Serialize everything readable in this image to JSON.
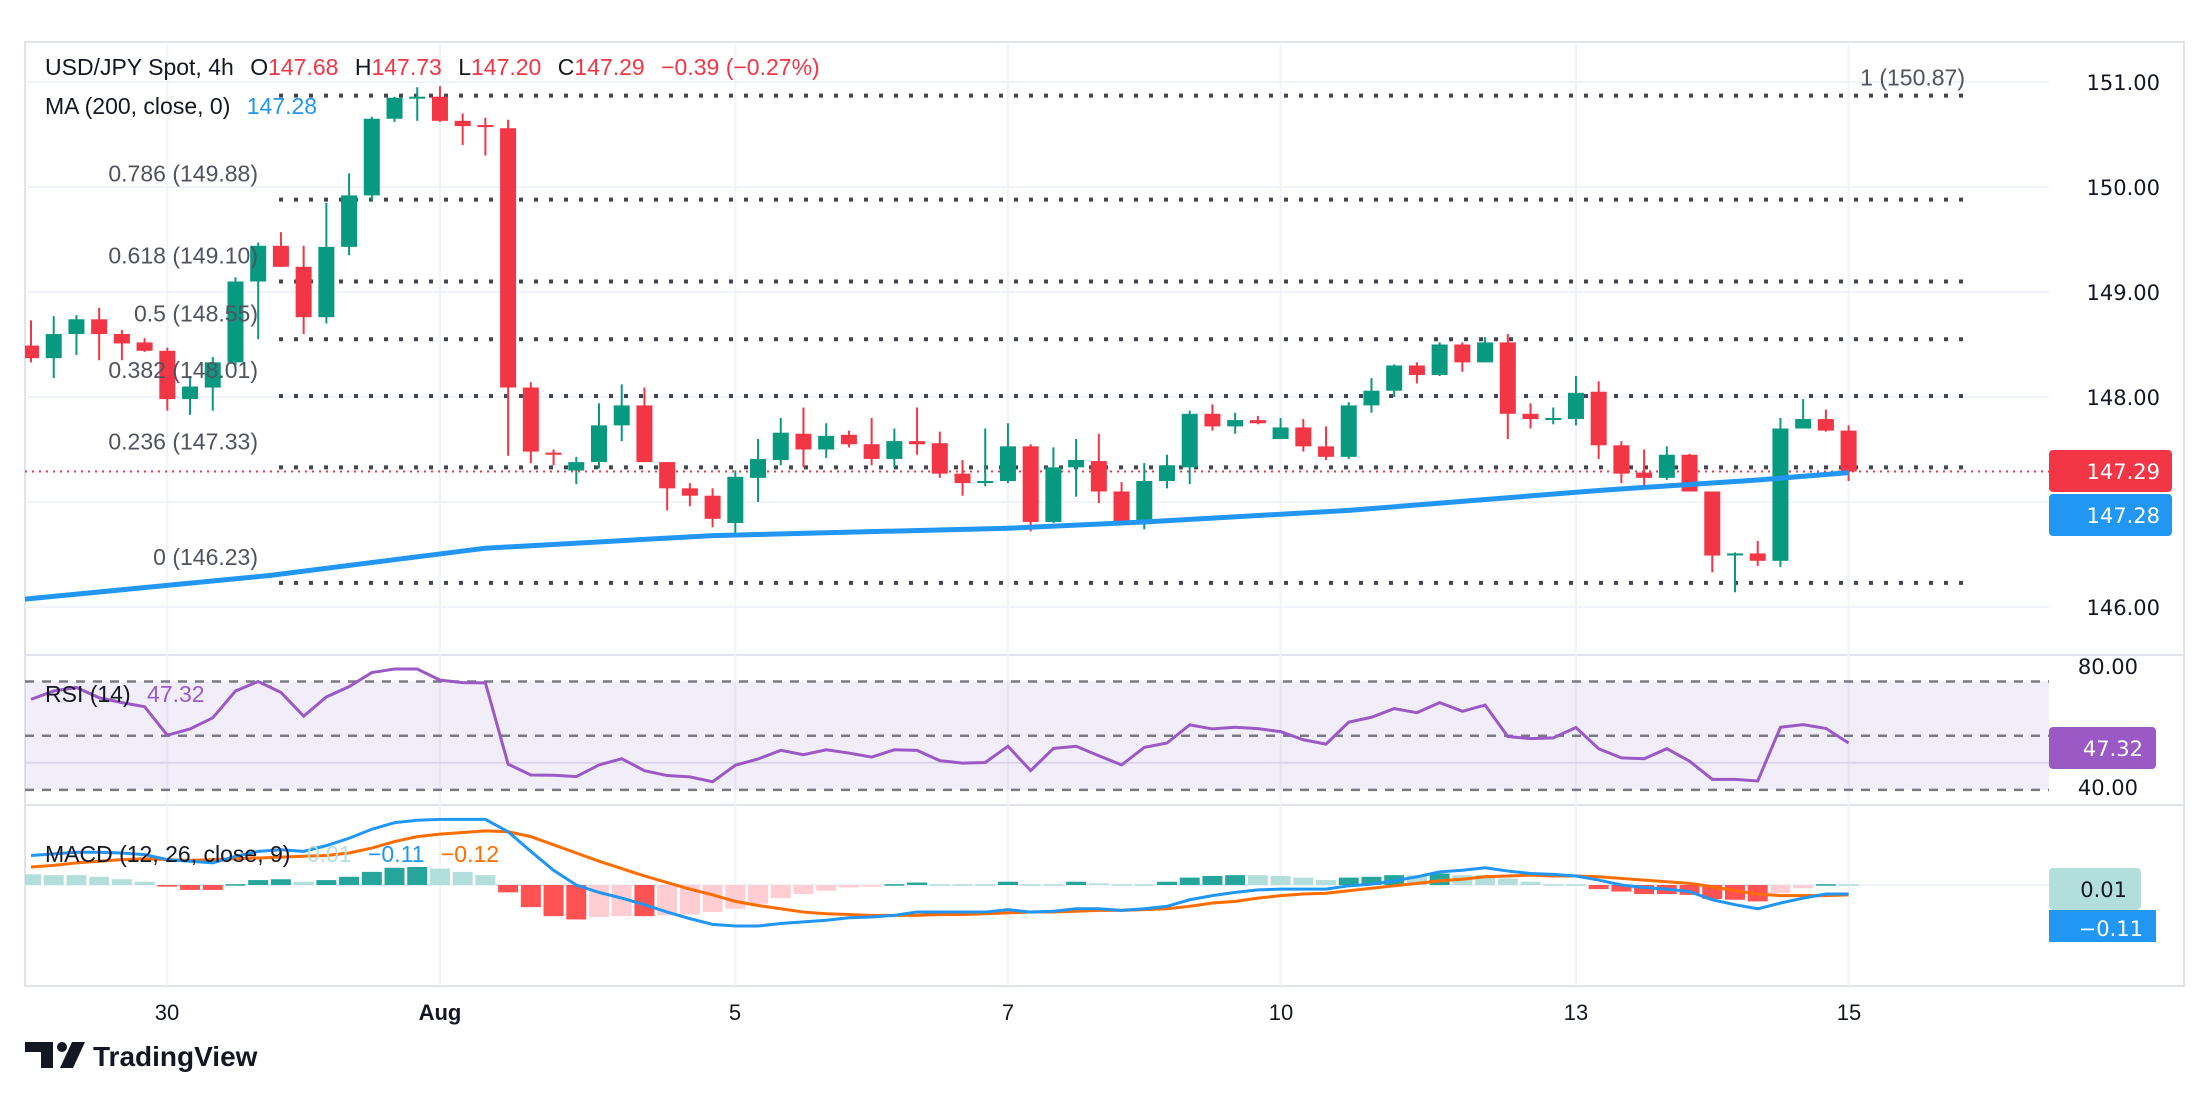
{
  "header": {
    "symbol": "USD/JPY Spot, 4h",
    "o_label": "O",
    "o": "147.68",
    "h_label": "H",
    "h": "147.73",
    "l_label": "L",
    "l": "147.20",
    "c_label": "C",
    "c": "147.29",
    "change": "−0.39 (−0.27%)"
  },
  "ma": {
    "label": "MA (200, close, 0)",
    "value": "147.28"
  },
  "rsi": {
    "label": "RSI (14)",
    "value": "47.32"
  },
  "macd": {
    "label": "MACD (12, 26, close, 9)",
    "hist": "0.01",
    "macd": "−0.11",
    "signal": "−0.12"
  },
  "price_axis": {
    "ticks": [
      "151.00",
      "150.00",
      "149.00",
      "148.00",
      "146.00"
    ]
  },
  "price_tags": {
    "last": "147.29",
    "ma": "147.28"
  },
  "rsi_axis": {
    "ticks": [
      "80.00",
      "40.00"
    ],
    "tag": "47.32"
  },
  "macd_tags": {
    "hist": "0.01",
    "macd": "−0.11"
  },
  "fib": [
    {
      "label": "1 (150.87)",
      "ratio": 1,
      "price": 150.87
    },
    {
      "label": "0.786 (149.88)",
      "ratio": 0.786,
      "price": 149.88
    },
    {
      "label": "0.618 (149.10)",
      "ratio": 0.618,
      "price": 149.1
    },
    {
      "label": "0.5 (148.55)",
      "ratio": 0.5,
      "price": 148.55
    },
    {
      "label": "0.382 (148.01)",
      "ratio": 0.382,
      "price": 148.01
    },
    {
      "label": "0.236 (147.33)",
      "ratio": 0.236,
      "price": 147.33
    },
    {
      "label": "0 (146.23)",
      "ratio": 0,
      "price": 146.23
    }
  ],
  "time_axis": [
    {
      "label": "30",
      "bar": 6
    },
    {
      "label": "Aug",
      "bar": 18
    },
    {
      "label": "5",
      "bar": 31
    },
    {
      "label": "7",
      "bar": 43
    },
    {
      "label": "10",
      "bar": 55
    },
    {
      "label": "13",
      "bar": 68
    },
    {
      "label": "15",
      "bar": 80
    }
  ],
  "brand": {
    "name": "TradingView"
  },
  "colors": {
    "up": "#089981",
    "down": "#f23645",
    "ma": "#2196f3",
    "rsi": "#9b59c6",
    "macd": "#2196f3",
    "signal": "#ff6d00",
    "hist_up_strong": "#26a69a",
    "hist_up_weak": "#b2dfdb",
    "hist_down_strong": "#ff5252",
    "hist_down_weak": "#ffcdd2",
    "fib_line": "#434651"
  },
  "chart_data": {
    "type": "candlestick",
    "interval": "4h",
    "ylim": [
      145.54,
      151.38
    ],
    "rsi_ylim": [
      30,
      80
    ],
    "rsi_bands": [
      70,
      50,
      30
    ],
    "grid": true,
    "candles_ohlc": [
      [
        148.49,
        148.73,
        148.33,
        148.37
      ],
      [
        148.37,
        148.77,
        148.18,
        148.6
      ],
      [
        148.6,
        148.78,
        148.4,
        148.74
      ],
      [
        148.74,
        148.85,
        148.35,
        148.6
      ],
      [
        148.6,
        148.64,
        148.35,
        148.51
      ],
      [
        148.52,
        148.56,
        148.43,
        148.44
      ],
      [
        148.44,
        148.47,
        147.87,
        147.98
      ],
      [
        147.98,
        148.2,
        147.83,
        148.1
      ],
      [
        148.09,
        148.38,
        147.87,
        148.33
      ],
      [
        148.33,
        149.14,
        148.3,
        149.1
      ],
      [
        149.1,
        149.47,
        148.55,
        149.44
      ],
      [
        149.44,
        149.57,
        149.24,
        149.24
      ],
      [
        149.24,
        149.44,
        148.6,
        148.76
      ],
      [
        148.76,
        149.85,
        148.7,
        149.43
      ],
      [
        149.43,
        150.13,
        149.35,
        149.92
      ],
      [
        149.92,
        150.67,
        149.87,
        150.65
      ],
      [
        150.65,
        150.86,
        150.62,
        150.85
      ],
      [
        150.85,
        150.95,
        150.63,
        150.86
      ],
      [
        150.86,
        150.96,
        150.62,
        150.63
      ],
      [
        150.63,
        150.7,
        150.4,
        150.58
      ],
      [
        150.59,
        150.66,
        150.3,
        150.58
      ],
      [
        150.56,
        150.64,
        147.44,
        148.09
      ],
      [
        148.09,
        148.14,
        147.37,
        147.48
      ],
      [
        147.47,
        147.5,
        147.35,
        147.45
      ],
      [
        147.3,
        147.43,
        147.17,
        147.38
      ],
      [
        147.38,
        147.94,
        147.32,
        147.73
      ],
      [
        147.73,
        148.12,
        147.58,
        147.92
      ],
      [
        147.92,
        148.09,
        147.38,
        147.38
      ],
      [
        147.38,
        147.38,
        146.92,
        147.13
      ],
      [
        147.13,
        147.18,
        146.96,
        147.06
      ],
      [
        147.06,
        147.13,
        146.76,
        146.84
      ],
      [
        146.8,
        147.3,
        146.7,
        147.24
      ],
      [
        147.23,
        147.6,
        147.0,
        147.41
      ],
      [
        147.4,
        147.8,
        147.35,
        147.66
      ],
      [
        147.65,
        147.9,
        147.33,
        147.5
      ],
      [
        147.5,
        147.75,
        147.42,
        147.63
      ],
      [
        147.64,
        147.68,
        147.52,
        147.55
      ],
      [
        147.55,
        147.8,
        147.35,
        147.41
      ],
      [
        147.41,
        147.7,
        147.33,
        147.58
      ],
      [
        147.58,
        147.9,
        147.45,
        147.55
      ],
      [
        147.56,
        147.67,
        147.23,
        147.27
      ],
      [
        147.27,
        147.4,
        147.06,
        147.18
      ],
      [
        147.19,
        147.7,
        147.15,
        147.2
      ],
      [
        147.2,
        147.75,
        147.18,
        147.53
      ],
      [
        147.53,
        147.55,
        146.72,
        146.81
      ],
      [
        146.81,
        147.52,
        146.8,
        147.33
      ],
      [
        147.33,
        147.6,
        147.05,
        147.4
      ],
      [
        147.39,
        147.65,
        146.99,
        147.1
      ],
      [
        147.1,
        147.19,
        146.78,
        146.81
      ],
      [
        146.8,
        147.37,
        146.74,
        147.2
      ],
      [
        147.2,
        147.45,
        147.13,
        147.35
      ],
      [
        147.33,
        147.87,
        147.17,
        147.84
      ],
      [
        147.84,
        147.93,
        147.68,
        147.72
      ],
      [
        147.72,
        147.85,
        147.65,
        147.78
      ],
      [
        147.78,
        147.82,
        147.74,
        147.75
      ],
      [
        147.6,
        147.8,
        147.6,
        147.71
      ],
      [
        147.71,
        147.79,
        147.48,
        147.53
      ],
      [
        147.53,
        147.72,
        147.4,
        147.43
      ],
      [
        147.43,
        147.95,
        147.41,
        147.92
      ],
      [
        147.92,
        148.18,
        147.85,
        148.06
      ],
      [
        148.06,
        148.31,
        148.0,
        148.3
      ],
      [
        148.3,
        148.33,
        148.13,
        148.21
      ],
      [
        148.21,
        148.52,
        148.2,
        148.5
      ],
      [
        148.5,
        148.52,
        148.24,
        148.33
      ],
      [
        148.33,
        148.57,
        148.33,
        148.52
      ],
      [
        148.52,
        148.6,
        147.6,
        147.84
      ],
      [
        147.84,
        147.94,
        147.7,
        147.79
      ],
      [
        147.79,
        147.9,
        147.74,
        147.8
      ],
      [
        147.79,
        148.2,
        147.73,
        148.04
      ],
      [
        148.05,
        148.15,
        147.41,
        147.54
      ],
      [
        147.54,
        147.58,
        147.18,
        147.27
      ],
      [
        147.28,
        147.5,
        147.13,
        147.23
      ],
      [
        147.23,
        147.53,
        147.21,
        147.45
      ],
      [
        147.45,
        147.46,
        147.1,
        147.1
      ],
      [
        147.1,
        147.1,
        146.33,
        146.49
      ],
      [
        146.5,
        146.52,
        146.14,
        146.51
      ],
      [
        146.51,
        146.63,
        146.39,
        146.44
      ],
      [
        146.44,
        147.8,
        146.38,
        147.7
      ],
      [
        147.7,
        147.98,
        147.7,
        147.79
      ],
      [
        147.79,
        147.88,
        147.67,
        147.68
      ],
      [
        147.68,
        147.73,
        147.2,
        147.29
      ]
    ],
    "ma200": [
      [
        -0.5,
        146.07
      ],
      [
        10.5,
        146.3
      ],
      [
        20,
        146.56
      ],
      [
        30,
        146.68
      ],
      [
        43,
        146.75
      ],
      [
        49,
        146.81
      ],
      [
        58,
        146.92
      ],
      [
        69,
        147.11
      ],
      [
        76,
        147.21
      ],
      [
        80,
        147.28
      ]
    ],
    "rsi": [
      63.4,
      66.5,
      67.8,
      64.0,
      62.2,
      60.7,
      50.2,
      52.5,
      56.6,
      66.5,
      70.0,
      66.0,
      57.2,
      64.3,
      68.1,
      73.3,
      74.6,
      74.6,
      70.5,
      69.6,
      69.5,
      39.5,
      35.5,
      35.4,
      34.9,
      39.2,
      41.5,
      37.1,
      35.3,
      34.8,
      33.0,
      39.1,
      41.4,
      44.6,
      43.0,
      44.8,
      43.6,
      42.1,
      44.8,
      44.6,
      40.8,
      39.9,
      40.1,
      46.1,
      37.1,
      45.3,
      46.1,
      42.6,
      39.2,
      45.7,
      47.3,
      54.0,
      52.5,
      53.1,
      52.6,
      51.5,
      48.5,
      46.9,
      55.0,
      56.8,
      60.0,
      58.5,
      62.2,
      59.0,
      61.3,
      49.7,
      48.9,
      49.2,
      53.0,
      45.2,
      41.8,
      41.5,
      45.2,
      40.6,
      33.9,
      33.9,
      33.3,
      53.1,
      54.1,
      52.7,
      47.32
    ],
    "macd": [
      0.36,
      0.38,
      0.4,
      0.4,
      0.39,
      0.37,
      0.31,
      0.29,
      0.27,
      0.35,
      0.41,
      0.43,
      0.41,
      0.48,
      0.57,
      0.68,
      0.76,
      0.79,
      0.8,
      0.8,
      0.8,
      0.65,
      0.41,
      0.18,
      0.0,
      -0.09,
      -0.16,
      -0.24,
      -0.33,
      -0.41,
      -0.48,
      -0.5,
      -0.5,
      -0.47,
      -0.45,
      -0.43,
      -0.4,
      -0.39,
      -0.37,
      -0.33,
      -0.33,
      -0.33,
      -0.33,
      -0.3,
      -0.33,
      -0.32,
      -0.29,
      -0.29,
      -0.31,
      -0.29,
      -0.26,
      -0.18,
      -0.13,
      -0.09,
      -0.06,
      -0.05,
      -0.05,
      -0.05,
      -0.01,
      0.01,
      0.05,
      0.1,
      0.16,
      0.18,
      0.21,
      0.17,
      0.14,
      0.13,
      0.11,
      0.06,
      0.0,
      -0.03,
      -0.05,
      -0.08,
      -0.18,
      -0.24,
      -0.29,
      -0.22,
      -0.16,
      -0.11,
      -0.11
    ],
    "signal": [
      0.22,
      0.24,
      0.27,
      0.29,
      0.31,
      0.32,
      0.31,
      0.3,
      0.31,
      0.32,
      0.33,
      0.34,
      0.35,
      0.36,
      0.39,
      0.45,
      0.53,
      0.59,
      0.62,
      0.64,
      0.66,
      0.65,
      0.59,
      0.49,
      0.39,
      0.29,
      0.2,
      0.11,
      0.03,
      -0.05,
      -0.12,
      -0.2,
      -0.25,
      -0.29,
      -0.33,
      -0.35,
      -0.36,
      -0.37,
      -0.37,
      -0.37,
      -0.36,
      -0.36,
      -0.35,
      -0.34,
      -0.33,
      -0.33,
      -0.32,
      -0.31,
      -0.31,
      -0.3,
      -0.29,
      -0.26,
      -0.22,
      -0.2,
      -0.16,
      -0.13,
      -0.11,
      -0.1,
      -0.07,
      -0.04,
      -0.01,
      0.02,
      0.05,
      0.07,
      0.1,
      0.11,
      0.12,
      0.11,
      0.11,
      0.1,
      0.08,
      0.06,
      0.04,
      0.02,
      -0.02,
      -0.07,
      -0.11,
      -0.13,
      -0.13,
      -0.13,
      -0.12
    ],
    "histogram": [
      0.13,
      0.12,
      0.12,
      0.1,
      0.07,
      0.04,
      -0.02,
      -0.06,
      -0.06,
      0.01,
      0.06,
      0.07,
      0.04,
      0.06,
      0.1,
      0.16,
      0.21,
      0.22,
      0.2,
      0.16,
      0.12,
      -0.09,
      -0.27,
      -0.38,
      -0.42,
      -0.39,
      -0.38,
      -0.38,
      -0.37,
      -0.36,
      -0.33,
      -0.29,
      -0.23,
      -0.16,
      -0.11,
      -0.07,
      -0.03,
      -0.02,
      0.01,
      0.03,
      0.01,
      0.01,
      0.01,
      0.04,
      0.01,
      0.01,
      0.04,
      0.02,
      0.01,
      0.01,
      0.04,
      0.09,
      0.11,
      0.12,
      0.12,
      0.11,
      0.09,
      0.06,
      0.09,
      0.1,
      0.12,
      0.12,
      0.14,
      0.12,
      0.12,
      0.08,
      0.04,
      0.01,
      0.01,
      -0.05,
      -0.08,
      -0.11,
      -0.11,
      -0.12,
      -0.17,
      -0.18,
      -0.2,
      -0.1,
      -0.04,
      0.01,
      0.01
    ]
  }
}
